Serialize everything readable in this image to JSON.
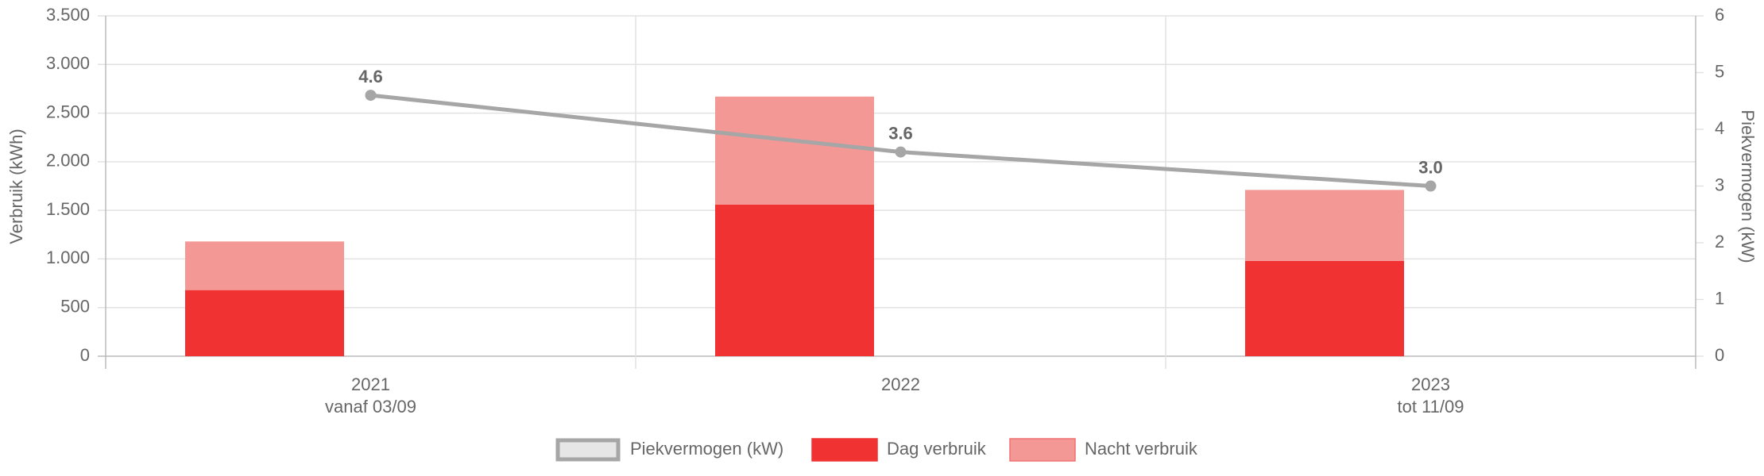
{
  "chart_data": {
    "type": "bar",
    "categories": [
      "2021",
      "2022",
      "2023"
    ],
    "category_sublabels": [
      "vanaf 03/09",
      null,
      "tot 11/09"
    ],
    "ylabel": "Verbruik (kWh)",
    "y2label": "Piekvermogen (kW)",
    "ylim": [
      0,
      3500
    ],
    "yticks": [
      0,
      500,
      {
        "value": 1000,
        "label": "1.000"
      },
      {
        "value": 1500,
        "label": "1.500"
      },
      {
        "value": 2000,
        "label": "2.000"
      },
      {
        "value": 2500,
        "label": "2.500"
      },
      {
        "value": 3000,
        "label": "3.000"
      },
      {
        "value": 3500,
        "label": "3.500"
      }
    ],
    "y2lim": [
      0,
      6
    ],
    "y2ticks": [
      0,
      1,
      2,
      3,
      4,
      5,
      6
    ],
    "grid": true,
    "legend": "bottom",
    "series": [
      {
        "name": "Piekvermogen (kW)",
        "type": "line",
        "axis": "y2",
        "color": "#a6a6a6",
        "values": [
          4.6,
          3.6,
          3.0
        ],
        "value_labels": [
          "4.6",
          "3.6",
          "3.0"
        ]
      },
      {
        "name": "Dag verbruik",
        "type": "bar",
        "color": "#f03232",
        "values": [
          680,
          1560,
          980
        ]
      },
      {
        "name": "Nacht verbruik",
        "type": "bar",
        "color": "#f49896",
        "values": [
          500,
          1110,
          730
        ]
      }
    ]
  }
}
